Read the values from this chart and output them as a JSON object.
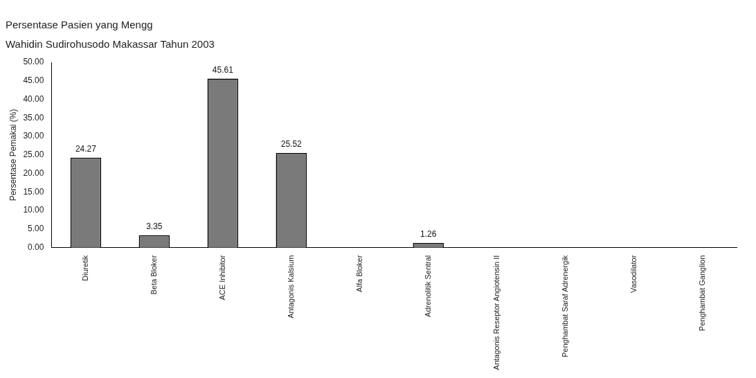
{
  "chart_data": {
    "type": "bar",
    "title": "Persentase Pasien yang Mengg",
    "subtitle": "Wahidin Sudirohusodo Makassar Tahun 2003",
    "ylabel": "Persentase Pemakai (%)",
    "categories": [
      "Diuretik",
      "Beta Bloker",
      "ACE Inhibitor",
      "Antagonis Kalsium",
      "Alfa Bloker",
      "Adrenolitik Sentral",
      "Antagonis Reseptor Angiotensin II",
      "Penghambat Saraf Adrenergik",
      "Vasodilator",
      "Penghambat Ganglion"
    ],
    "values": [
      24.27,
      3.35,
      45.61,
      25.52,
      0,
      1.26,
      0,
      0,
      0,
      0
    ],
    "value_labels": [
      "24.27",
      "3.35",
      "45.61",
      "25.52",
      null,
      "1.26",
      null,
      null,
      null,
      null
    ],
    "color": "#7a7a7a",
    "ylim": [
      0,
      50
    ],
    "yticks": [
      {
        "value": 0,
        "label": "0.00"
      },
      {
        "value": 5,
        "label": "5.00"
      },
      {
        "value": 10,
        "label": "10.00"
      },
      {
        "value": 15,
        "label": "15.00"
      },
      {
        "value": 20,
        "label": "20.00"
      },
      {
        "value": 25,
        "label": "25.00"
      },
      {
        "value": 30,
        "label": "30.00"
      },
      {
        "value": 35,
        "label": "35.00"
      },
      {
        "value": 40,
        "label": "40.00"
      },
      {
        "value": 45,
        "label": "45.00"
      },
      {
        "value": 50,
        "label": "50.00"
      }
    ],
    "grid": false,
    "legend": false
  }
}
